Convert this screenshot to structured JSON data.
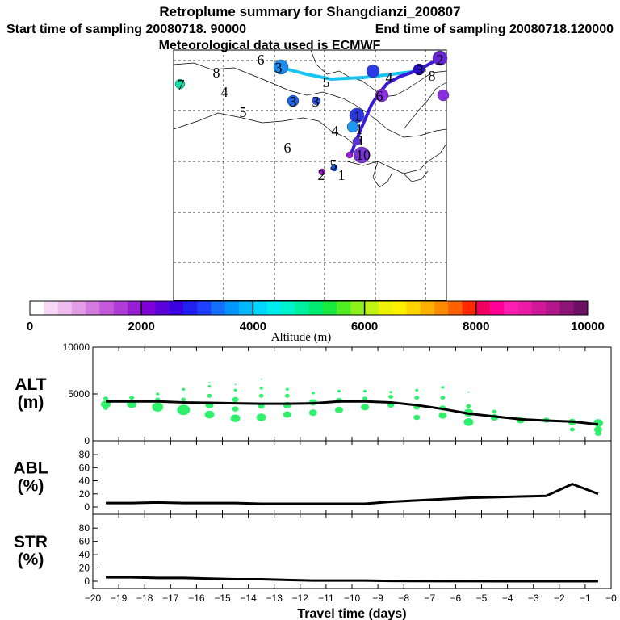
{
  "title": "Retroplume summary for Shangdianzi_200807",
  "start_label": "Start time of sampling 20080718. 90000",
  "end_label": "End time of sampling 20080718.120000",
  "met_label": "Meteorological data used is ECMWF",
  "colorbar": {
    "ticks": [
      "0",
      "2000",
      "4000",
      "6000",
      "8000",
      "10000"
    ],
    "label": "Altitude (m)",
    "colors": [
      "#ffffff",
      "#f6d8f6",
      "#eebcee",
      "#e39ce6",
      "#d57be0",
      "#c659db",
      "#b03cd8",
      "#9a1ed6",
      "#7f00d9",
      "#5c00dc",
      "#3a00e0",
      "#2020f0",
      "#2040ff",
      "#1470ff",
      "#0096ff",
      "#00b8ff",
      "#00d6ff",
      "#00ecf0",
      "#00f4cc",
      "#00f0a0",
      "#00ea70",
      "#18ea40",
      "#50ee20",
      "#8cf21a",
      "#c0f414",
      "#eef20a",
      "#fff000",
      "#ffd400",
      "#ffb000",
      "#ff8c00",
      "#ff6000",
      "#ff2a00",
      "#f00060",
      "#ff0099",
      "#ff1eb4",
      "#ee1ba8",
      "#d2189a",
      "#b5168c",
      "#8e1478",
      "#6e1064"
    ]
  },
  "map": {
    "path_light": [
      [
        345,
        83
      ],
      [
        380,
        92
      ],
      [
        410,
        98
      ],
      [
        450,
        96
      ],
      [
        485,
        92
      ],
      [
        518,
        88
      ]
    ],
    "path_dark": [
      [
        435,
        190
      ],
      [
        447,
        160
      ],
      [
        460,
        130
      ],
      [
        470,
        115
      ],
      [
        480,
        103
      ],
      [
        495,
        95
      ],
      [
        518,
        87
      ],
      [
        545,
        72
      ]
    ],
    "markers": [
      {
        "x": 545,
        "y": 72,
        "r": 9,
        "color": "#6a24d8"
      },
      {
        "x": 348,
        "y": 83,
        "r": 9,
        "color": "#1a8cf0"
      },
      {
        "x": 462,
        "y": 88,
        "r": 8,
        "color": "#2a3ae6"
      },
      {
        "x": 519,
        "y": 86,
        "r": 7,
        "color": "#2b12c8"
      },
      {
        "x": 473,
        "y": 118,
        "r": 8,
        "color": "#8a2ee0"
      },
      {
        "x": 549,
        "y": 118,
        "r": 7,
        "color": "#8a2ee0"
      },
      {
        "x": 223,
        "y": 104,
        "r": 6,
        "color": "#10e0a8"
      },
      {
        "x": 363,
        "y": 125,
        "r": 7,
        "color": "#1c64e8"
      },
      {
        "x": 392,
        "y": 125,
        "r": 5,
        "color": "#2a56e0"
      },
      {
        "x": 442,
        "y": 143,
        "r": 9,
        "color": "#2a38e4"
      },
      {
        "x": 437,
        "y": 157,
        "r": 7,
        "color": "#1f98f2"
      },
      {
        "x": 442,
        "y": 175,
        "r": 5,
        "color": "#5a30d8"
      },
      {
        "x": 448,
        "y": 192,
        "r": 10,
        "color": "#7a34d6"
      },
      {
        "x": 433,
        "y": 192,
        "r": 4,
        "color": "#9a18d0"
      },
      {
        "x": 399,
        "y": 213,
        "r": 4,
        "color": "#a21ad0"
      },
      {
        "x": 414,
        "y": 208,
        "r": 4,
        "color": "#1a5ce8"
      }
    ],
    "labels": [
      {
        "x": 323,
        "y": 80,
        "t": "6"
      },
      {
        "x": 345,
        "y": 90,
        "t": "3"
      },
      {
        "x": 404,
        "y": 108,
        "t": "5"
      },
      {
        "x": 482,
        "y": 102,
        "t": "4"
      },
      {
        "x": 520,
        "y": 93,
        "t": "3"
      },
      {
        "x": 535,
        "y": 100,
        "t": "8"
      },
      {
        "x": 545,
        "y": 80,
        "t": "2"
      },
      {
        "x": 268,
        "y": 96,
        "t": "8"
      },
      {
        "x": 224,
        "y": 111,
        "t": "7"
      },
      {
        "x": 278,
        "y": 120,
        "t": "4"
      },
      {
        "x": 301,
        "y": 145,
        "t": "5"
      },
      {
        "x": 363,
        "y": 132,
        "t": "3"
      },
      {
        "x": 391,
        "y": 132,
        "t": "3"
      },
      {
        "x": 470,
        "y": 125,
        "t": "6"
      },
      {
        "x": 415,
        "y": 168,
        "t": "4"
      },
      {
        "x": 443,
        "y": 150,
        "t": "1"
      },
      {
        "x": 445,
        "y": 166,
        "t": "1"
      },
      {
        "x": 447,
        "y": 180,
        "t": "1"
      },
      {
        "x": 356,
        "y": 189,
        "t": "6"
      },
      {
        "x": 450,
        "y": 198,
        "t": "10"
      },
      {
        "x": 398,
        "y": 223,
        "t": "2"
      },
      {
        "x": 413,
        "y": 210,
        "t": "5"
      },
      {
        "x": 423,
        "y": 223,
        "t": "1"
      }
    ]
  },
  "chart_data": [
    {
      "type": "scatter",
      "panel": "ALT",
      "ylabel": "ALT (m)",
      "ylabel_top": "ALT",
      "ylabel_bot": "(m)",
      "ylim": [
        0,
        10000
      ],
      "yticks": [
        {
          "v": 10000,
          "t": "10000"
        },
        {
          "v": 5000,
          "t": "5000"
        },
        {
          "v": 0,
          "t": "0"
        }
      ],
      "line_x": [
        -19.5,
        -18.5,
        -17.5,
        -16.5,
        -15.5,
        -14.5,
        -13.5,
        -12.5,
        -11.5,
        -10.5,
        -9.5,
        -8.5,
        -7.5,
        -6.5,
        -5.5,
        -4.5,
        -3.5,
        -2.5,
        -1.5,
        -0.5
      ],
      "line_y": [
        4200,
        4200,
        4200,
        4100,
        4050,
        4000,
        3950,
        3950,
        4000,
        4200,
        4200,
        4100,
        3800,
        3400,
        2900,
        2600,
        2300,
        2150,
        2050,
        1750
      ],
      "points": [
        {
          "x": -19.5,
          "y": 3900,
          "s": 6
        },
        {
          "x": -19.5,
          "y": 4500,
          "s": 3
        },
        {
          "x": -19.5,
          "y": 3500,
          "s": 3
        },
        {
          "x": -18.5,
          "y": 3900,
          "s": 6
        },
        {
          "x": -18.5,
          "y": 4600,
          "s": 3
        },
        {
          "x": -17.5,
          "y": 3600,
          "s": 7
        },
        {
          "x": -17.5,
          "y": 4400,
          "s": 3
        },
        {
          "x": -17.5,
          "y": 5000,
          "s": 2
        },
        {
          "x": -16.5,
          "y": 3300,
          "s": 8
        },
        {
          "x": -16.5,
          "y": 4400,
          "s": 3
        },
        {
          "x": -16.5,
          "y": 5500,
          "s": 2
        },
        {
          "x": -15.5,
          "y": 2800,
          "s": 6
        },
        {
          "x": -15.5,
          "y": 3800,
          "s": 5
        },
        {
          "x": -15.5,
          "y": 4800,
          "s": 3
        },
        {
          "x": -15.5,
          "y": 5800,
          "s": 2
        },
        {
          "x": -15.5,
          "y": 6200,
          "s": 1
        },
        {
          "x": -14.5,
          "y": 2400,
          "s": 6
        },
        {
          "x": -14.5,
          "y": 3400,
          "s": 4
        },
        {
          "x": -14.5,
          "y": 4400,
          "s": 4
        },
        {
          "x": -14.5,
          "y": 5400,
          "s": 2
        },
        {
          "x": -14.5,
          "y": 6000,
          "s": 1
        },
        {
          "x": -13.5,
          "y": 2500,
          "s": 6
        },
        {
          "x": -13.5,
          "y": 3700,
          "s": 4
        },
        {
          "x": -13.5,
          "y": 4800,
          "s": 3
        },
        {
          "x": -13.5,
          "y": 5600,
          "s": 2
        },
        {
          "x": -13.5,
          "y": 6600,
          "s": 1
        },
        {
          "x": -12.5,
          "y": 2800,
          "s": 5
        },
        {
          "x": -12.5,
          "y": 3800,
          "s": 5
        },
        {
          "x": -12.5,
          "y": 4800,
          "s": 3
        },
        {
          "x": -12.5,
          "y": 5500,
          "s": 2
        },
        {
          "x": -11.5,
          "y": 3000,
          "s": 5
        },
        {
          "x": -11.5,
          "y": 4100,
          "s": 5
        },
        {
          "x": -11.5,
          "y": 5100,
          "s": 2
        },
        {
          "x": -10.5,
          "y": 3300,
          "s": 5
        },
        {
          "x": -10.5,
          "y": 4300,
          "s": 4
        },
        {
          "x": -10.5,
          "y": 5300,
          "s": 2
        },
        {
          "x": -9.5,
          "y": 3600,
          "s": 5
        },
        {
          "x": -9.5,
          "y": 4500,
          "s": 3
        },
        {
          "x": -9.5,
          "y": 5300,
          "s": 2
        },
        {
          "x": -8.5,
          "y": 3800,
          "s": 4
        },
        {
          "x": -8.5,
          "y": 4700,
          "s": 3
        },
        {
          "x": -8.5,
          "y": 5200,
          "s": 2
        },
        {
          "x": -7.5,
          "y": 2500,
          "s": 4
        },
        {
          "x": -7.5,
          "y": 3600,
          "s": 4
        },
        {
          "x": -7.5,
          "y": 4600,
          "s": 3
        },
        {
          "x": -7.5,
          "y": 5400,
          "s": 2
        },
        {
          "x": -6.5,
          "y": 2700,
          "s": 5
        },
        {
          "x": -6.5,
          "y": 3500,
          "s": 4
        },
        {
          "x": -6.5,
          "y": 4600,
          "s": 3
        },
        {
          "x": -6.5,
          "y": 5700,
          "s": 2
        },
        {
          "x": -5.5,
          "y": 2000,
          "s": 6
        },
        {
          "x": -5.5,
          "y": 3000,
          "s": 6
        },
        {
          "x": -5.5,
          "y": 3700,
          "s": 3
        },
        {
          "x": -5.5,
          "y": 5200,
          "s": 1
        },
        {
          "x": -4.5,
          "y": 2500,
          "s": 5
        },
        {
          "x": -4.5,
          "y": 3100,
          "s": 3
        },
        {
          "x": -3.5,
          "y": 2200,
          "s": 5
        },
        {
          "x": -2.5,
          "y": 2200,
          "s": 4
        },
        {
          "x": -1.5,
          "y": 2000,
          "s": 5
        },
        {
          "x": -1.5,
          "y": 1200,
          "s": 3
        },
        {
          "x": -0.5,
          "y": 1900,
          "s": 6
        },
        {
          "x": -0.5,
          "y": 1200,
          "s": 5
        },
        {
          "x": -0.5,
          "y": 800,
          "s": 4
        }
      ]
    },
    {
      "type": "line",
      "panel": "ABL",
      "ylabel": "ABL (%)",
      "ylabel_top": "ABL",
      "ylabel_bot": "(%)",
      "ylim": [
        0,
        90
      ],
      "yticks": [
        {
          "v": 80,
          "t": "80"
        },
        {
          "v": 60,
          "t": "60"
        },
        {
          "v": 40,
          "t": "40"
        },
        {
          "v": 20,
          "t": "20"
        },
        {
          "v": 0,
          "t": "0"
        }
      ],
      "x": [
        -19.5,
        -18.5,
        -17.5,
        -16.5,
        -15.5,
        -14.5,
        -13.5,
        -12.5,
        -11.5,
        -10.5,
        -9.5,
        -8.5,
        -7.5,
        -6.5,
        -5.5,
        -4.5,
        -3.5,
        -2.5,
        -1.5,
        -0.5
      ],
      "y": [
        6,
        6,
        7,
        6,
        6,
        6,
        5,
        5,
        5,
        5,
        5,
        8,
        10,
        12,
        14,
        15,
        16,
        17,
        35,
        20
      ]
    },
    {
      "type": "line",
      "panel": "STR",
      "ylabel": "STR (%)",
      "ylabel_top": "STR",
      "ylabel_bot": "(%)",
      "ylim": [
        0,
        90
      ],
      "xlabel": "Travel time (days)",
      "xlim": [
        -20,
        0
      ],
      "xticks": [
        "−20",
        "−19",
        "−18",
        "−17",
        "−16",
        "−15",
        "−14",
        "−13",
        "−12",
        "−11",
        "−10",
        "−9",
        "−8",
        "−7",
        "−6",
        "−5",
        "−4",
        "−3",
        "−2",
        "−1",
        "−0"
      ],
      "yticks": [
        {
          "v": 80,
          "t": "80"
        },
        {
          "v": 60,
          "t": "60"
        },
        {
          "v": 40,
          "t": "40"
        },
        {
          "v": 20,
          "t": "20"
        },
        {
          "v": 0,
          "t": "0"
        }
      ],
      "x": [
        -19.5,
        -18.5,
        -17.5,
        -16.5,
        -15.5,
        -14.5,
        -13.5,
        -12.5,
        -11.5,
        -10.5,
        -9.5,
        -8.5,
        -7.5,
        -6.5,
        -5.5,
        -4.5,
        -3.5,
        -2.5,
        -1.5,
        -0.5
      ],
      "y": [
        6,
        6,
        5,
        5,
        4,
        3,
        3,
        2,
        1,
        1,
        1,
        0.5,
        0.3,
        0.2,
        0.1,
        0,
        0,
        0,
        0,
        0
      ]
    }
  ]
}
